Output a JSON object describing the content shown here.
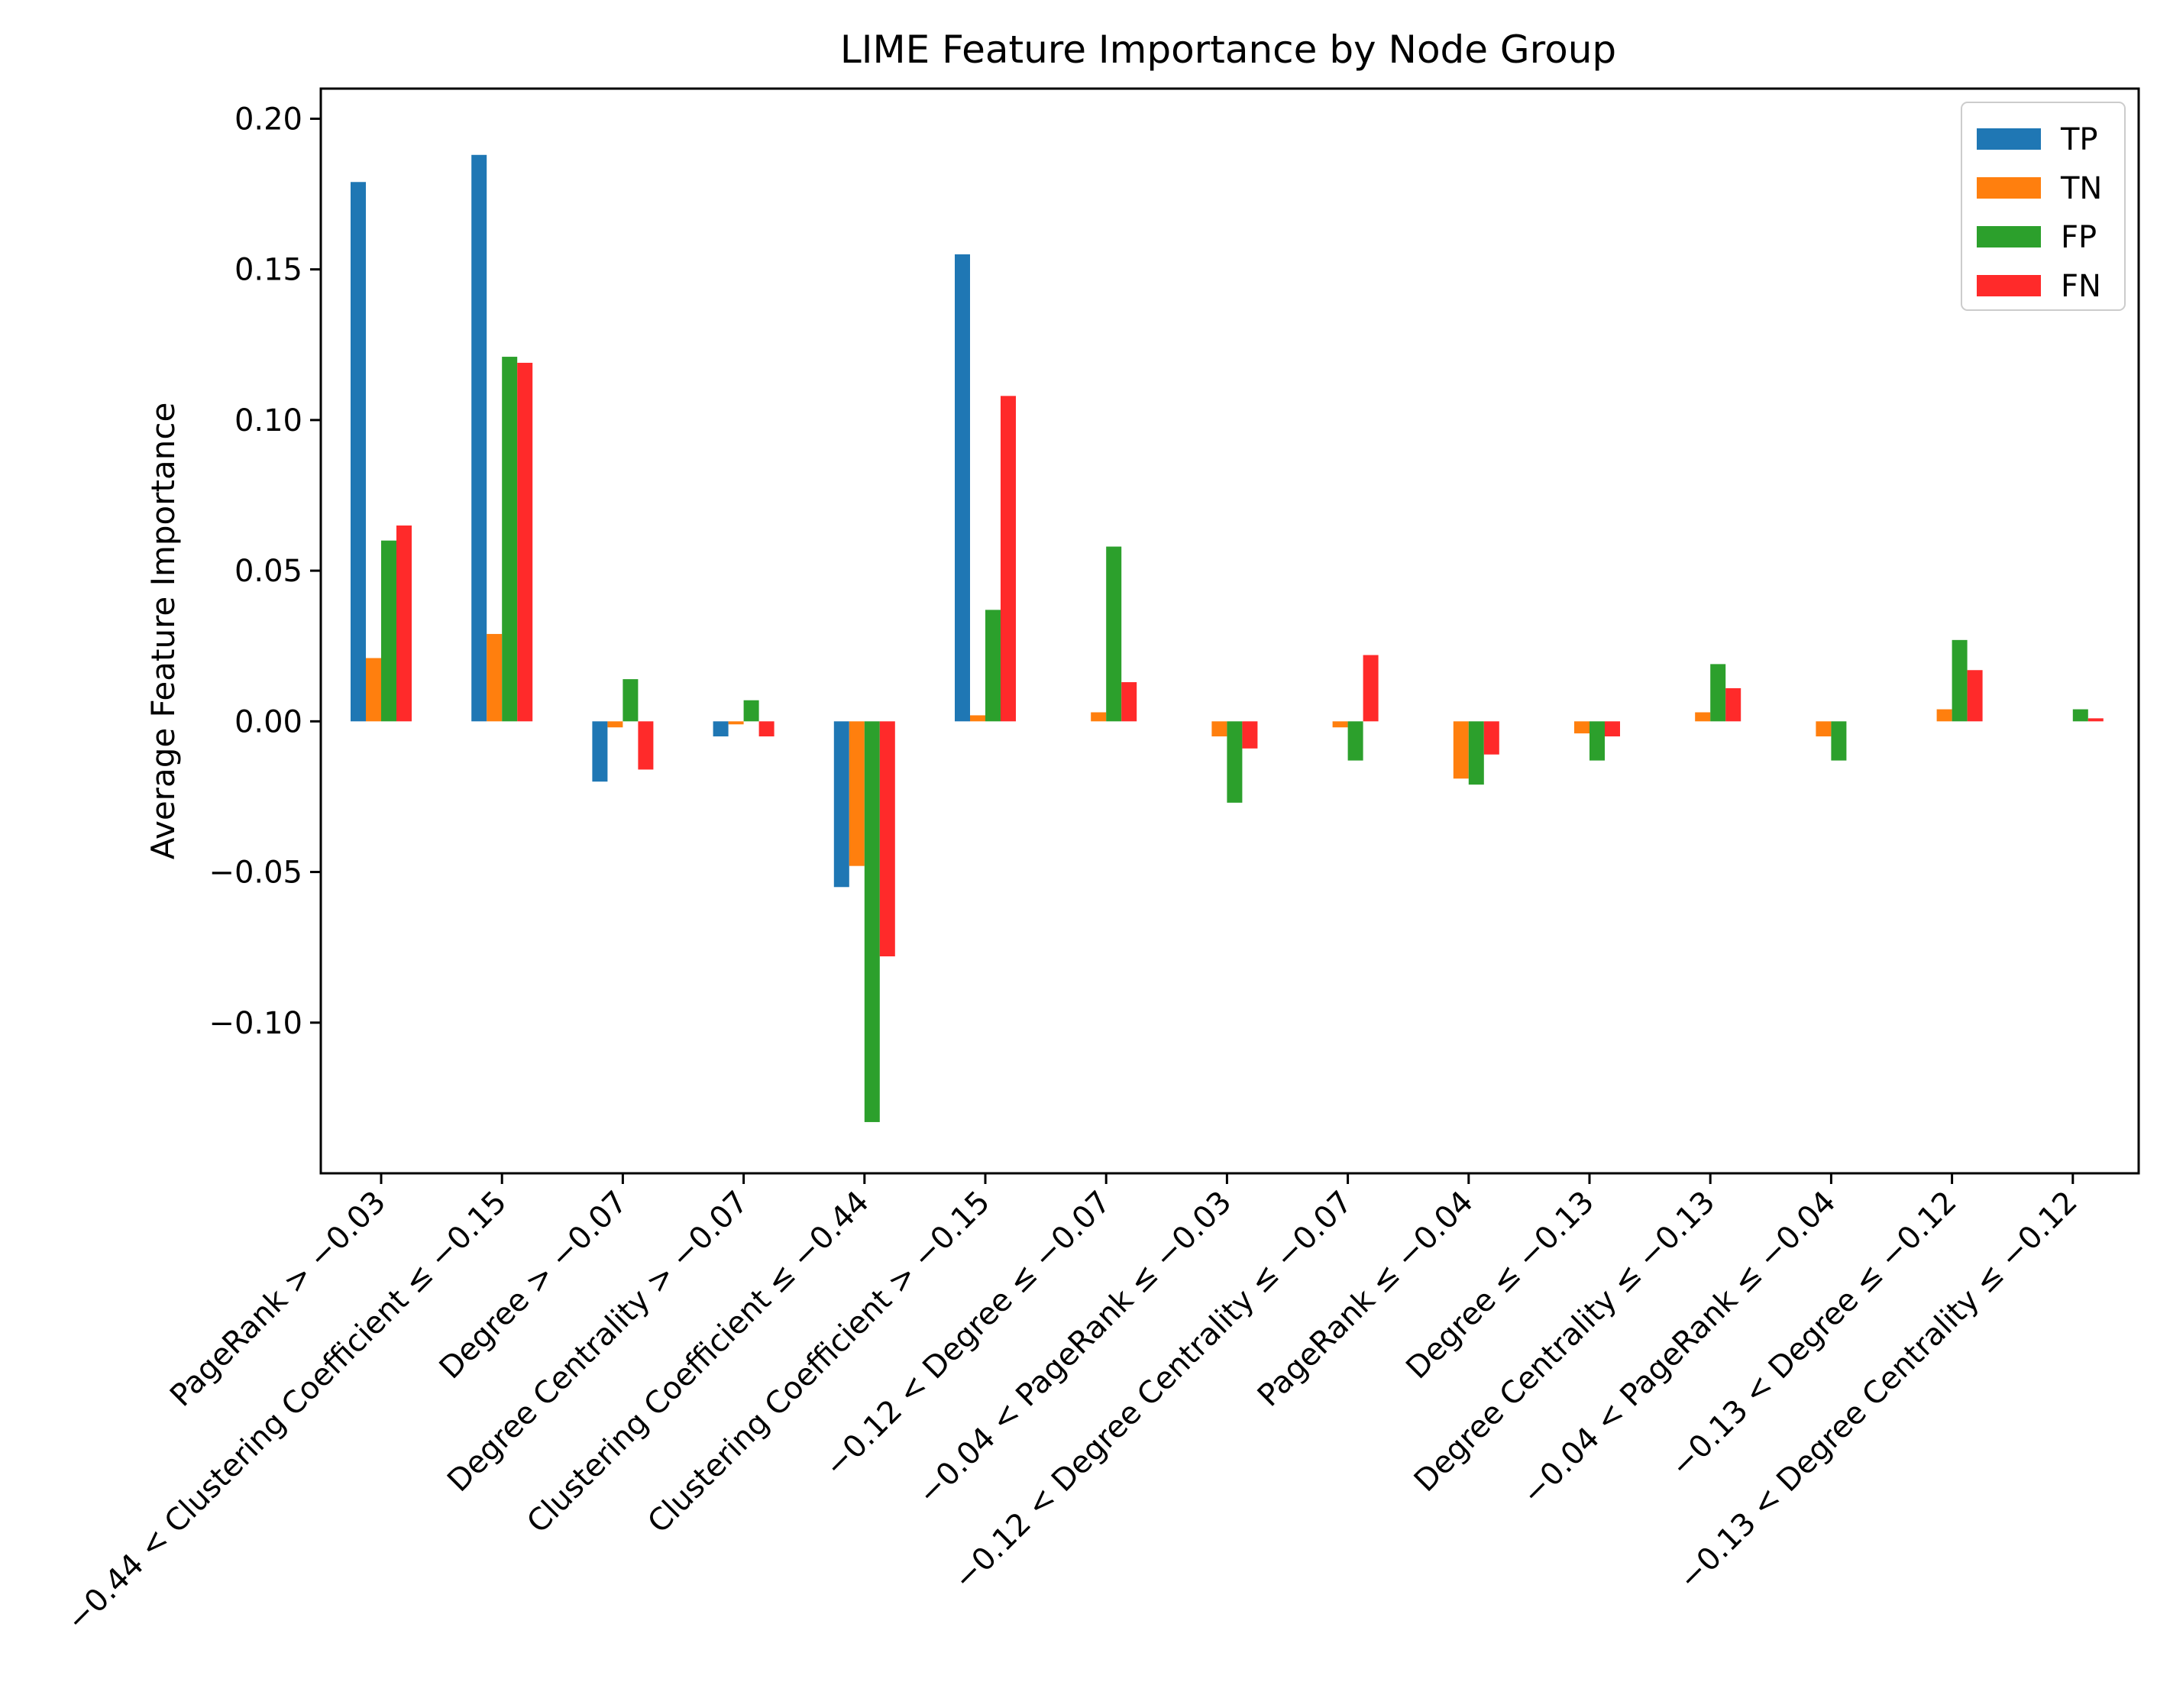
{
  "chart_data": {
    "type": "bar",
    "title": "LIME Feature Importance by Node Group",
    "xlabel": "",
    "ylabel": "Average Feature Importance",
    "ylim": [
      -0.15,
      0.21
    ],
    "yticks": [
      0.2,
      0.15,
      0.1,
      0.05,
      0.0,
      -0.05,
      -0.1
    ],
    "ytick_labels": [
      "0.20",
      "0.15",
      "0.10",
      "0.05",
      "0.00",
      "−0.05",
      "−0.10"
    ],
    "grid": false,
    "legend_position": "top-right",
    "categories": [
      "PageRank > −0.03",
      "−0.44 < Clustering Coefficient ≤ −0.15",
      "Degree > −0.07",
      "Degree Centrality > −0.07",
      "Clustering Coefficient ≤ −0.44",
      "Clustering Coefficient > −0.15",
      "−0.12 < Degree ≤ −0.07",
      "−0.04 < PageRank ≤ −0.03",
      "−0.12 < Degree Centrality ≤ −0.07",
      "PageRank ≤ −0.04",
      "Degree ≤ −0.13",
      "Degree Centrality ≤ −0.13",
      "−0.04 < PageRank ≤ −0.04",
      "−0.13 < Degree ≤ −0.12",
      "−0.13 < Degree Centrality ≤ −0.12"
    ],
    "series": [
      {
        "name": "TP",
        "color": "#1f77b4",
        "values": [
          0.179,
          0.188,
          -0.02,
          -0.005,
          -0.055,
          0.155,
          0.0,
          0.0,
          0.0,
          0.0,
          0.0,
          0.0,
          0.0,
          0.0,
          0.0
        ]
      },
      {
        "name": "TN",
        "color": "#ff7f0e",
        "values": [
          0.021,
          0.029,
          -0.002,
          -0.001,
          -0.048,
          0.002,
          0.003,
          -0.005,
          -0.002,
          -0.019,
          -0.004,
          0.003,
          -0.005,
          0.004,
          0.0
        ]
      },
      {
        "name": "FP",
        "color": "#2ca02c",
        "values": [
          0.06,
          0.121,
          0.014,
          0.007,
          -0.133,
          0.037,
          0.058,
          -0.027,
          -0.013,
          -0.021,
          -0.013,
          0.019,
          -0.013,
          0.027,
          0.004
        ]
      },
      {
        "name": "FN",
        "color": "#ff2a2a",
        "values": [
          0.065,
          0.119,
          -0.016,
          -0.005,
          -0.078,
          0.108,
          0.013,
          -0.009,
          0.022,
          -0.011,
          -0.005,
          0.011,
          0.0,
          0.017,
          0.001
        ]
      }
    ]
  }
}
